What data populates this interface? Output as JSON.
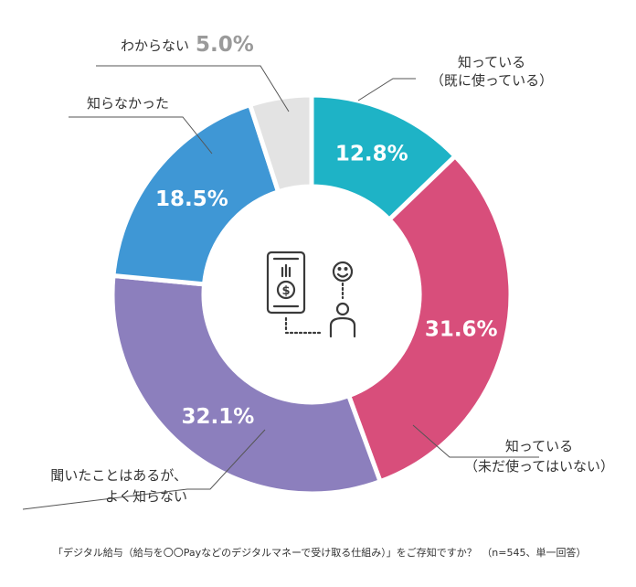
{
  "chart_data": {
    "type": "pie",
    "style": "donut",
    "slices": [
      {
        "label": "知っている（既に使っている）",
        "label_lines": [
          "知っている",
          "（既に使っている）"
        ],
        "value": 12.8,
        "value_label": "12.8%",
        "color": "#1eb3c6"
      },
      {
        "label": "知っている（未だ使ってはいない）",
        "label_lines": [
          "知っている",
          "（未だ使ってはいない）"
        ],
        "value": 31.6,
        "value_label": "31.6%",
        "color": "#d84e7b"
      },
      {
        "label": "聞いたことはあるが、よく知らない",
        "label_lines": [
          "聞いたことはあるが、",
          "よく知らない"
        ],
        "value": 32.1,
        "value_label": "32.1%",
        "color": "#8c7fbd"
      },
      {
        "label": "知らなかった",
        "label_lines": [
          "知らなかった"
        ],
        "value": 18.5,
        "value_label": "18.5%",
        "color": "#3f97d5"
      },
      {
        "label": "わからない",
        "label_lines": [
          "わからない"
        ],
        "value": 5.0,
        "value_label": "5.0%",
        "color": "#e3e3e3"
      }
    ],
    "caption": "「デジタル給与（給与を〇〇Payなどのデジタルマネーで受け取る仕組み）」をご存知ですか？　（n=545、単一回答）"
  },
  "icon": "smartphone-money-person-icon"
}
